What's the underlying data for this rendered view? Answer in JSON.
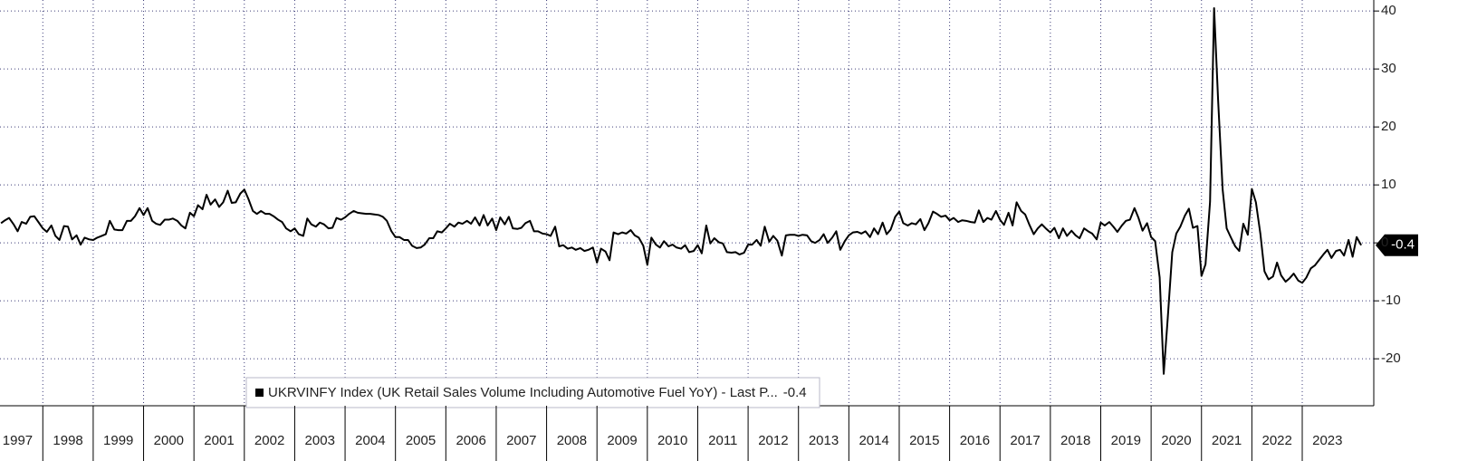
{
  "chart_data": {
    "type": "line",
    "legend": "UKRVINFY Index (UK Retail Sales Volume Including Automotive Fuel YoY) - Last P...",
    "xlim": [
      1997.15,
      2024.42
    ],
    "ylim": [
      -28.1,
      41.9
    ],
    "xticks": [
      1997,
      1998,
      1999,
      2000,
      2001,
      2002,
      2003,
      2004,
      2005,
      2006,
      2007,
      2008,
      2009,
      2010,
      2011,
      2012,
      2013,
      2014,
      2015,
      2016,
      2017,
      2018,
      2019,
      2020,
      2021,
      2022,
      2023
    ],
    "yticks": [
      -20,
      -10,
      0,
      10,
      20,
      30,
      40
    ],
    "grid": true,
    "series": [
      {
        "name": "UKRVINFY Index",
        "color": "#000000",
        "x": [
          1997.17,
          1997.25,
          1997.33,
          1997.42,
          1997.5,
          1997.58,
          1997.67,
          1997.75,
          1997.83,
          1997.92,
          1998,
          1998.08,
          1998.17,
          1998.25,
          1998.33,
          1998.42,
          1998.5,
          1998.58,
          1998.67,
          1998.75,
          1998.83,
          1998.92,
          1999,
          1999.08,
          1999.17,
          1999.25,
          1999.33,
          1999.42,
          1999.5,
          1999.58,
          1999.67,
          1999.75,
          1999.83,
          1999.92,
          2000,
          2000.08,
          2000.17,
          2000.25,
          2000.33,
          2000.42,
          2000.5,
          2000.58,
          2000.67,
          2000.75,
          2000.83,
          2000.92,
          2001,
          2001.08,
          2001.17,
          2001.25,
          2001.33,
          2001.42,
          2001.5,
          2001.58,
          2001.67,
          2001.75,
          2001.83,
          2001.92,
          2002,
          2002.08,
          2002.17,
          2002.25,
          2002.33,
          2002.42,
          2002.5,
          2002.58,
          2002.67,
          2002.75,
          2002.83,
          2002.92,
          2003,
          2003.08,
          2003.17,
          2003.25,
          2003.33,
          2003.42,
          2003.5,
          2003.58,
          2003.67,
          2003.75,
          2003.83,
          2003.92,
          2004,
          2004.08,
          2004.17,
          2004.25,
          2004.33,
          2004.42,
          2004.5,
          2004.58,
          2004.67,
          2004.75,
          2004.83,
          2004.92,
          2005,
          2005.08,
          2005.17,
          2005.25,
          2005.33,
          2005.42,
          2005.5,
          2005.58,
          2005.67,
          2005.75,
          2005.83,
          2005.92,
          2006,
          2006.08,
          2006.17,
          2006.25,
          2006.33,
          2006.42,
          2006.5,
          2006.58,
          2006.67,
          2006.75,
          2006.83,
          2006.92,
          2007,
          2007.08,
          2007.17,
          2007.25,
          2007.33,
          2007.42,
          2007.5,
          2007.58,
          2007.67,
          2007.75,
          2007.83,
          2007.92,
          2008,
          2008.08,
          2008.17,
          2008.25,
          2008.33,
          2008.42,
          2008.5,
          2008.58,
          2008.67,
          2008.75,
          2008.83,
          2008.92,
          2009,
          2009.08,
          2009.17,
          2009.25,
          2009.33,
          2009.42,
          2009.5,
          2009.58,
          2009.67,
          2009.75,
          2009.83,
          2009.92,
          2010,
          2010.08,
          2010.17,
          2010.25,
          2010.33,
          2010.42,
          2010.5,
          2010.58,
          2010.67,
          2010.75,
          2010.83,
          2010.92,
          2011,
          2011.08,
          2011.17,
          2011.25,
          2011.33,
          2011.42,
          2011.5,
          2011.58,
          2011.67,
          2011.75,
          2011.83,
          2011.92,
          2012,
          2012.08,
          2012.17,
          2012.25,
          2012.33,
          2012.42,
          2012.5,
          2012.58,
          2012.67,
          2012.75,
          2012.83,
          2012.92,
          2013,
          2013.08,
          2013.17,
          2013.25,
          2013.33,
          2013.42,
          2013.5,
          2013.58,
          2013.67,
          2013.75,
          2013.83,
          2013.92,
          2014,
          2014.08,
          2014.17,
          2014.25,
          2014.33,
          2014.42,
          2014.5,
          2014.58,
          2014.67,
          2014.75,
          2014.83,
          2014.92,
          2015,
          2015.08,
          2015.17,
          2015.25,
          2015.33,
          2015.42,
          2015.5,
          2015.58,
          2015.67,
          2015.75,
          2015.83,
          2015.92,
          2016,
          2016.08,
          2016.17,
          2016.25,
          2016.33,
          2016.42,
          2016.5,
          2016.58,
          2016.67,
          2016.75,
          2016.83,
          2016.92,
          2017,
          2017.08,
          2017.17,
          2017.25,
          2017.33,
          2017.42,
          2017.5,
          2017.58,
          2017.67,
          2017.75,
          2017.83,
          2017.92,
          2018,
          2018.08,
          2018.17,
          2018.25,
          2018.33,
          2018.42,
          2018.5,
          2018.58,
          2018.67,
          2018.75,
          2018.83,
          2018.92,
          2019,
          2019.08,
          2019.17,
          2019.25,
          2019.33,
          2019.42,
          2019.5,
          2019.58,
          2019.67,
          2019.75,
          2019.83,
          2019.92,
          2020,
          2020.08,
          2020.17,
          2020.25,
          2020.33,
          2020.42,
          2020.5,
          2020.58,
          2020.67,
          2020.75,
          2020.83,
          2020.92,
          2021,
          2021.08,
          2021.17,
          2021.25,
          2021.33,
          2021.42,
          2021.5,
          2021.58,
          2021.67,
          2021.75,
          2021.83,
          2021.92,
          2022,
          2022.08,
          2022.17,
          2022.25,
          2022.33,
          2022.42,
          2022.5,
          2022.58,
          2022.67,
          2022.75,
          2022.83,
          2022.92,
          2023,
          2023.08,
          2023.17,
          2023.25,
          2023.33,
          2023.42,
          2023.5,
          2023.58,
          2023.67,
          2023.75,
          2023.83,
          2023.92,
          2024,
          2024.08,
          2024.17
        ],
        "values": [
          3.4,
          3.9,
          4.3,
          3.2,
          2.0,
          3.6,
          3.3,
          4.5,
          4.6,
          3.5,
          2.5,
          1.9,
          3.0,
          1.2,
          0.5,
          2.9,
          2.8,
          0.6,
          1.3,
          -0.3,
          0.9,
          0.6,
          0.5,
          0.9,
          1.2,
          1.5,
          3.8,
          2.3,
          2.2,
          2.2,
          3.8,
          3.8,
          4.6,
          6.0,
          4.8,
          6.0,
          3.8,
          3.3,
          3.1,
          4.0,
          4.0,
          4.2,
          3.8,
          3.0,
          2.5,
          5.2,
          4.6,
          6.5,
          5.8,
          8.3,
          6.6,
          7.5,
          6.2,
          7.0,
          9.0,
          6.9,
          7.0,
          8.5,
          9.2,
          7.6,
          5.5,
          5.0,
          5.5,
          5.0,
          5.0,
          4.6,
          4.0,
          3.6,
          2.5,
          2.0,
          2.5,
          1.5,
          1.2,
          4.2,
          3.2,
          2.8,
          3.5,
          3.2,
          2.5,
          2.6,
          4.3,
          4.0,
          4.4,
          5.0,
          5.5,
          5.2,
          5.1,
          5.0,
          5.0,
          4.9,
          4.8,
          4.5,
          3.8,
          2.0,
          1.0,
          1.0,
          0.5,
          0.5,
          -0.5,
          -0.9,
          -0.8,
          -0.3,
          0.8,
          0.8,
          2.0,
          1.8,
          2.5,
          3.3,
          2.8,
          3.5,
          3.3,
          3.8,
          3.3,
          4.4,
          3.0,
          4.8,
          3.0,
          4.2,
          2.2,
          4.4,
          3.2,
          4.5,
          2.5,
          2.4,
          2.6,
          3.4,
          3.8,
          2.0,
          2.0,
          1.6,
          1.5,
          1.2,
          2.8,
          -0.6,
          -0.4,
          -1.0,
          -0.8,
          -1.2,
          -0.9,
          -1.4,
          -1.2,
          -0.8,
          -3.4,
          -1.0,
          -1.5,
          -3.0,
          1.8,
          1.5,
          1.8,
          1.6,
          2.2,
          1.3,
          0.9,
          -0.5,
          -3.8,
          0.9,
          -0.3,
          -0.8,
          0.3,
          -0.6,
          -0.3,
          -0.8,
          -1.0,
          -0.4,
          -1.6,
          -1.4,
          -0.4,
          -1.8,
          3.0,
          -0.1,
          0.8,
          0.1,
          -0.1,
          -1.6,
          -1.7,
          -1.6,
          -2.0,
          -1.7,
          -0.3,
          -0.3,
          0.5,
          -0.5,
          2.8,
          0.2,
          1.2,
          0.4,
          -2.2,
          1.3,
          1.4,
          1.4,
          1.2,
          1.4,
          1.3,
          0.3,
          0.0,
          0.5,
          1.5,
          0.0,
          0.9,
          2.0,
          -1.2,
          0.3,
          1.3,
          1.8,
          1.9,
          1.6,
          2.0,
          1.0,
          2.5,
          1.5,
          3.5,
          1.5,
          2.3,
          4.5,
          5.4,
          3.4,
          3.0,
          3.4,
          3.2,
          4.1,
          2.2,
          3.4,
          5.4,
          5.0,
          4.5,
          4.7,
          3.9,
          4.3,
          3.6,
          3.9,
          3.8,
          3.6,
          3.5,
          5.6,
          3.6,
          4.3,
          4.0,
          5.5,
          4.0,
          3.1,
          5.2,
          3.0,
          7.0,
          5.5,
          4.9,
          3.2,
          1.5,
          2.5,
          3.2,
          2.4,
          1.8,
          2.6,
          0.8,
          2.5,
          1.2,
          2.1,
          1.3,
          0.8,
          2.5,
          2.0,
          1.6,
          0.6,
          3.5,
          3.0,
          3.6,
          2.8,
          1.9,
          3.0,
          3.8,
          4.0,
          6.0,
          4.3,
          2.1,
          3.4,
          1.0,
          0.3,
          -6.0,
          -22.6,
          -13.0,
          -1.6,
          1.6,
          2.8,
          4.7,
          5.9,
          2.6,
          2.9,
          -5.7,
          -3.7,
          7.1,
          40.5,
          24.6,
          9.2,
          2.5,
          1.0,
          -0.6,
          -1.4,
          3.3,
          1.4,
          9.3,
          7.0,
          1.5,
          -4.9,
          -6.3,
          -5.8,
          -3.4,
          -5.6,
          -6.7,
          -6.1,
          -5.3,
          -6.5,
          -6.9,
          -6.0,
          -4.4,
          -3.9,
          -3.0,
          -2.0,
          -1.2,
          -2.6,
          -1.4,
          -1.2,
          -2.2,
          0.5,
          -2.4,
          1.0,
          -0.4
        ]
      }
    ]
  }
}
